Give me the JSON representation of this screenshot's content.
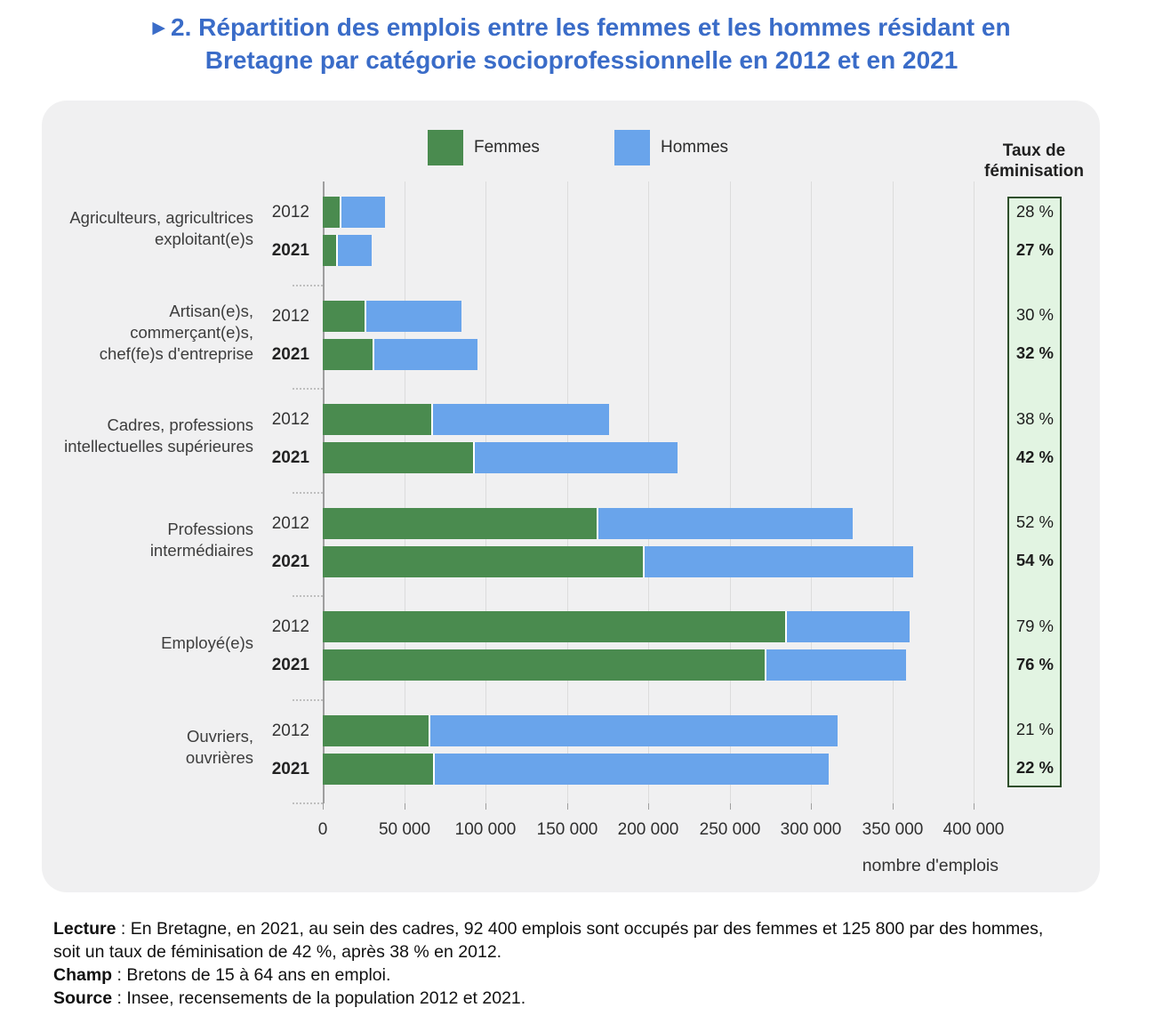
{
  "title": {
    "marker": "▶",
    "line1": "2. Répartition des emplois entre les femmes et les hommes résidant en",
    "line2": "Bretagne par catégorie socioprofessionnelle en 2012 et en 2021"
  },
  "legend": [
    {
      "label": "Femmes",
      "color": "#4a8b4f"
    },
    {
      "label": "Hommes",
      "color": "#69a4eb"
    }
  ],
  "feminisation_header": {
    "line1": "Taux de",
    "line2": "féminisation"
  },
  "colors": {
    "femmes": "#4a8b4f",
    "hommes": "#69a4eb",
    "title_blue": "#3a6cc8",
    "card_bg": "#f0f0f1",
    "fem_box_bg": "#e2f4e2",
    "fem_box_border": "#2f4f2c"
  },
  "chart_data": {
    "type": "bar",
    "orientation": "horizontal",
    "stacked": true,
    "series_names": [
      "Femmes",
      "Hommes"
    ],
    "x_axis": {
      "label": "nombre d'emplois",
      "max": 400000,
      "ticks": [
        0,
        50000,
        100000,
        150000,
        200000,
        250000,
        300000,
        350000,
        400000
      ],
      "tick_labels": [
        "0",
        "50 000",
        "100 000",
        "150 000",
        "200 000",
        "250 000",
        "300 000",
        "350 000",
        "400 000"
      ]
    },
    "grid": true,
    "groups": [
      {
        "category": "Agriculteurs, agricultrices exploitant(e)s",
        "category_lines": [
          "Agriculteurs, agricultrices",
          "exploitant(e)s"
        ],
        "rows": [
          {
            "year": "2012",
            "femmes": 10600,
            "hommes": 27700,
            "taux": "28 %"
          },
          {
            "year": "2021",
            "femmes": 8100,
            "hommes": 22100,
            "taux": "27 %"
          }
        ]
      },
      {
        "category": "Artisan(e)s, commerçant(e)s, chef(fe)s d'entreprise",
        "category_lines": [
          "Artisan(e)s,",
          "commerçant(e)s,",
          "chef(fe)s d'entreprise"
        ],
        "rows": [
          {
            "year": "2012",
            "femmes": 25500,
            "hommes": 59500,
            "taux": "30 %"
          },
          {
            "year": "2021",
            "femmes": 30400,
            "hommes": 64600,
            "taux": "32 %"
          }
        ]
      },
      {
        "category": "Cadres, professions intellectuelles supérieures",
        "category_lines": [
          "Cadres, professions",
          "intellectuelles supérieures"
        ],
        "rows": [
          {
            "year": "2012",
            "femmes": 66700,
            "hommes": 109200,
            "taux": "38 %"
          },
          {
            "year": "2021",
            "femmes": 92400,
            "hommes": 125800,
            "taux": "42 %"
          }
        ]
      },
      {
        "category": "Professions intermédiaires",
        "category_lines": [
          "Professions",
          "intermédiaires"
        ],
        "rows": [
          {
            "year": "2012",
            "femmes": 168500,
            "hommes": 157000,
            "taux": "52 %"
          },
          {
            "year": "2021",
            "femmes": 196800,
            "hommes": 166300,
            "taux": "54 %"
          }
        ]
      },
      {
        "category": "Employé(e)s",
        "category_lines": [
          "Employé(e)s"
        ],
        "rows": [
          {
            "year": "2012",
            "femmes": 284000,
            "hommes": 76500,
            "taux": "79 %"
          },
          {
            "year": "2021",
            "femmes": 271500,
            "hommes": 87200,
            "taux": "76 %"
          }
        ]
      },
      {
        "category": "Ouvriers, ouvrières",
        "category_lines": [
          "Ouvriers,",
          "ouvrières"
        ],
        "rows": [
          {
            "year": "2012",
            "femmes": 65100,
            "hommes": 251200,
            "taux": "21 %"
          },
          {
            "year": "2021",
            "femmes": 67700,
            "hommes": 243200,
            "taux": "22 %"
          }
        ]
      }
    ]
  },
  "notes": [
    {
      "label": "Lecture",
      "text": " : En Bretagne, en 2021, au sein des cadres, 92 400 emplois sont occupés par des femmes et 125 800 par des hommes, soit un taux de féminisation de 42 %, après 38 % en 2012."
    },
    {
      "label": "Champ",
      "text": " : Bretons de 15 à 64 ans en emploi."
    },
    {
      "label": "Source",
      "text": " : Insee, recensements de la population 2012 et 2021."
    }
  ]
}
